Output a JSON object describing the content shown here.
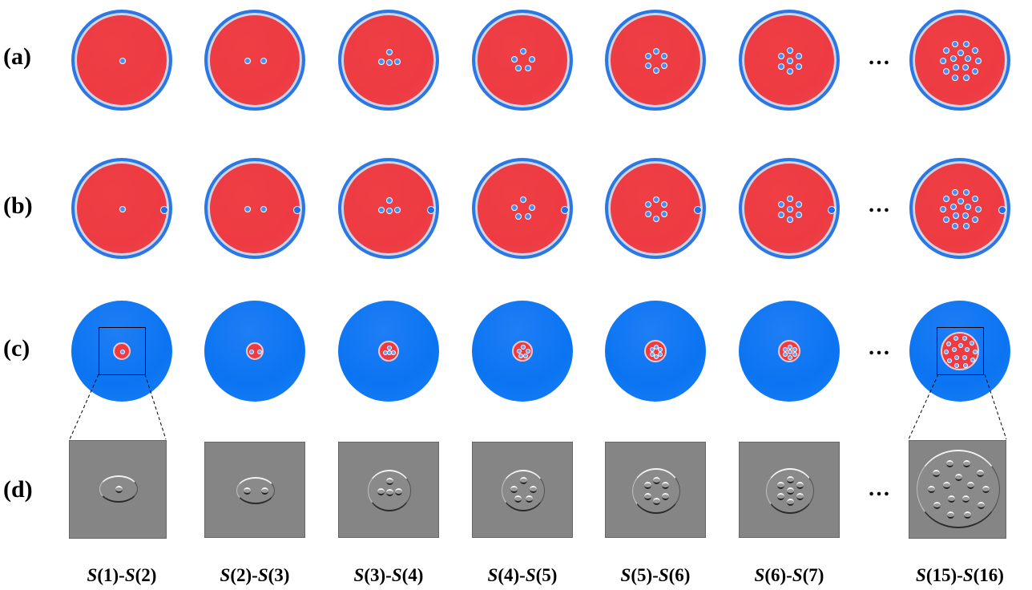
{
  "rows": [
    {
      "id": "a",
      "label": "(a)"
    },
    {
      "id": "b",
      "label": "(b)"
    },
    {
      "id": "c",
      "label": "(c)"
    },
    {
      "id": "d",
      "label": "(d)"
    }
  ],
  "ellipsis": "…",
  "columns": [
    {
      "label_left": "S",
      "n1": "(1)-",
      "label_right": "S",
      "n2": "(2)",
      "vortices": 1
    },
    {
      "label_left": "S",
      "n1": "(2)-",
      "label_right": "S",
      "n2": "(3)",
      "vortices": 2
    },
    {
      "label_left": "S",
      "n1": "(3)-",
      "label_right": "S",
      "n2": "(4)",
      "vortices": 4
    },
    {
      "label_left": "S",
      "n1": "(4)-",
      "label_right": "S",
      "n2": "(5)",
      "vortices": 5
    },
    {
      "label_left": "S",
      "n1": "(5)-",
      "label_right": "S",
      "n2": "(6)",
      "vortices": 6
    },
    {
      "label_left": "S",
      "n1": "(6)-",
      "label_right": "S",
      "n2": "(7)",
      "vortices": 7
    },
    {
      "label_left": "S",
      "n1": "(15)-",
      "label_right": "S",
      "n2": "(16)",
      "vortices": 15
    }
  ],
  "colors": {
    "red_disc": "#ee3b43",
    "blue_disc": "#0b74f2",
    "disc_rim": "#2a78e6",
    "panel_gray": "#858585"
  }
}
